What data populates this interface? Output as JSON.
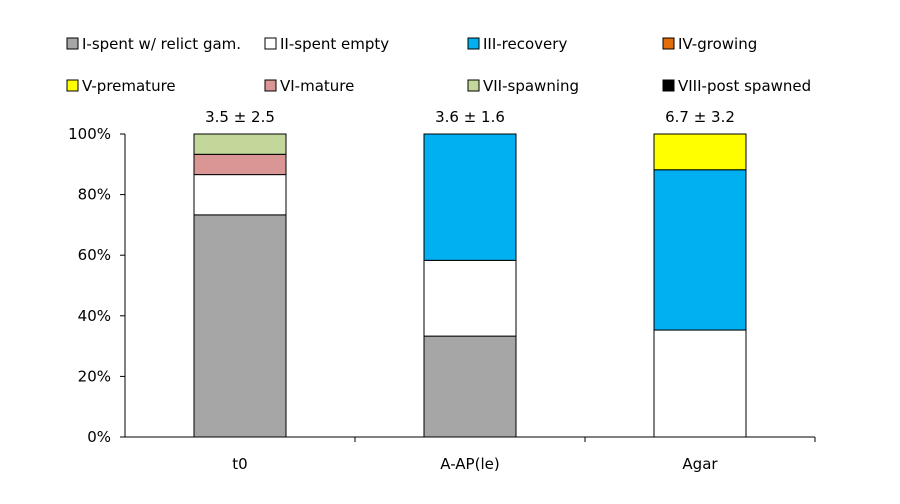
{
  "chart_data": {
    "type": "bar",
    "stacked": true,
    "percent": true,
    "categories": [
      "t0",
      "A-AP(le)",
      "Agar"
    ],
    "annotations": [
      "3.5 ± 2.5",
      "3.6 ± 1.6",
      "6.7 ± 3.2"
    ],
    "ylim": [
      0,
      100
    ],
    "yticks": [
      "0%",
      "20%",
      "40%",
      "60%",
      "80%",
      "100%"
    ],
    "ytick_values": [
      0,
      20,
      40,
      60,
      80,
      100
    ],
    "xlabel": "",
    "ylabel": "",
    "title": "",
    "grid": false,
    "legend_position": "top",
    "series": [
      {
        "name": "I-spent w/ relict gam.",
        "color": "#a6a6a6",
        "values": [
          73.3,
          33.3,
          0
        ]
      },
      {
        "name": "II-spent empty",
        "color": "#ffffff",
        "values": [
          13.3,
          25.0,
          35.3
        ]
      },
      {
        "name": "III-recovery",
        "color": "#00b0f0",
        "values": [
          0,
          41.7,
          52.9
        ]
      },
      {
        "name": "IV-growing",
        "color": "#e46c0a",
        "values": [
          0,
          0,
          0
        ]
      },
      {
        "name": "V-premature",
        "color": "#ffff00",
        "values": [
          0,
          0,
          11.8
        ]
      },
      {
        "name": "VI-mature",
        "color": "#da9694",
        "values": [
          6.7,
          0,
          0
        ]
      },
      {
        "name": "VII-spawning",
        "color": "#c4d79b",
        "values": [
          6.7,
          0,
          0
        ]
      },
      {
        "name": "VIII-post spawned",
        "color": "#000000",
        "values": [
          0,
          0,
          0
        ]
      }
    ]
  }
}
